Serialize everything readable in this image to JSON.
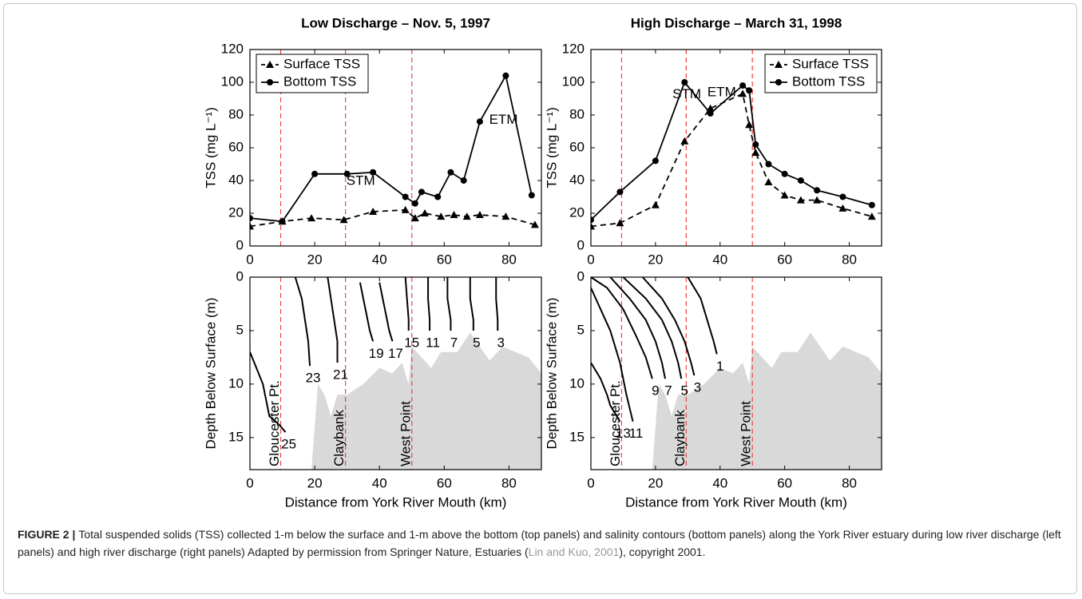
{
  "chart_data": [
    {
      "type": "line",
      "title": "Low Discharge – Nov. 5, 1997",
      "ylabel": "TSS (mg L⁻¹)",
      "xlim": [
        0,
        90
      ],
      "ylim": [
        0,
        120
      ],
      "xticks": [
        0,
        20,
        40,
        60,
        80
      ],
      "yticks": [
        0,
        20,
        40,
        60,
        80,
        100,
        120
      ],
      "legend": "upper left",
      "stations": [
        9.5,
        29.5,
        50
      ],
      "annotations": [
        "STM",
        "ETM"
      ],
      "series": [
        {
          "name": "Surface TSS",
          "color": "#000000",
          "dash": true,
          "marker": "triangle",
          "x": [
            0,
            10,
            19,
            29,
            38,
            48,
            51,
            54,
            59,
            63,
            67,
            71,
            79,
            88
          ],
          "values": [
            12,
            15,
            17,
            16,
            21,
            22,
            17,
            20,
            18,
            19,
            18,
            19,
            18,
            13
          ]
        },
        {
          "name": "Bottom TSS",
          "color": "#000000",
          "dash": false,
          "marker": "circle",
          "x": [
            0,
            10,
            20,
            30,
            38,
            48,
            51,
            53,
            58,
            62,
            66,
            71,
            79,
            87
          ],
          "values": [
            17,
            15,
            44,
            44,
            45,
            30,
            26,
            33,
            30,
            45,
            40,
            76,
            104,
            31
          ]
        }
      ]
    },
    {
      "type": "line",
      "title": "High Discharge – March 31, 1998",
      "ylabel": "TSS (mg L⁻¹)",
      "xlim": [
        0,
        90
      ],
      "ylim": [
        0,
        120
      ],
      "xticks": [
        0,
        20,
        40,
        60,
        80
      ],
      "yticks": [
        0,
        20,
        40,
        60,
        80,
        100,
        120
      ],
      "legend": "upper right",
      "stations": [
        9.5,
        29.5,
        50
      ],
      "annotations": [
        "STM",
        "ETM"
      ],
      "series": [
        {
          "name": "Surface TSS",
          "color": "#000000",
          "dash": true,
          "marker": "triangle",
          "x": [
            0,
            9,
            20,
            29,
            37,
            47,
            49,
            51,
            55,
            60,
            65,
            70,
            78,
            87
          ],
          "values": [
            12,
            14,
            25,
            64,
            84,
            93,
            74,
            57,
            39,
            31,
            28,
            28,
            23,
            18
          ]
        },
        {
          "name": "Bottom TSS",
          "color": "#000000",
          "dash": false,
          "marker": "circle",
          "x": [
            0,
            9,
            20,
            29,
            37,
            47,
            49,
            51,
            55,
            60,
            65,
            70,
            78,
            87
          ],
          "values": [
            16,
            33,
            52,
            100,
            81,
            98,
            95,
            62,
            50,
            44,
            40,
            34,
            30,
            25
          ]
        }
      ]
    },
    {
      "type": "contour",
      "xlabel": "Distance from York River Mouth (km)",
      "ylabel": "Depth Below Surface (m)",
      "xlim": [
        0,
        90
      ],
      "ylim": [
        0,
        18
      ],
      "y_inverted": true,
      "xticks": [
        0,
        20,
        40,
        60,
        80
      ],
      "yticks": [
        0,
        5,
        10,
        15
      ],
      "stations": [
        {
          "x": 9.5,
          "label": "Gloucester Pt."
        },
        {
          "x": 29.5,
          "label": "Claybank"
        },
        {
          "x": 50,
          "label": "West Point"
        }
      ],
      "bathymetry": {
        "x": [
          19,
          21,
          23,
          25,
          27,
          30,
          35,
          40,
          44,
          47,
          49,
          50,
          53,
          56,
          59,
          64,
          68,
          71,
          74,
          78,
          82,
          86,
          90,
          90
        ],
        "y": [
          18,
          10,
          11,
          13,
          11,
          11,
          10,
          8.5,
          9,
          8,
          10,
          6.5,
          7.5,
          8.5,
          7,
          7,
          5.2,
          6.5,
          7.8,
          6.5,
          7,
          7.5,
          9,
          18
        ]
      },
      "contours": [
        {
          "level": 25,
          "x": [
            0,
            2,
            4,
            5,
            6,
            9,
            11
          ],
          "y": [
            7,
            8.5,
            10,
            11.5,
            13,
            13.8,
            14.5
          ]
        },
        {
          "level": 23,
          "x": [
            14,
            16,
            17,
            18,
            18.5
          ],
          "y": [
            0,
            2,
            4,
            6,
            8.3
          ]
        },
        {
          "level": 21,
          "x": [
            24,
            25,
            26,
            27,
            27
          ],
          "y": [
            0,
            2,
            4,
            6,
            8
          ]
        },
        {
          "level": 19,
          "x": [
            34,
            35,
            36,
            37,
            38
          ],
          "y": [
            0.5,
            2,
            3.5,
            5,
            6
          ]
        },
        {
          "level": 17,
          "x": [
            40,
            41,
            42,
            43,
            44
          ],
          "y": [
            0.5,
            2,
            3.5,
            5,
            6
          ]
        },
        {
          "level": 15,
          "x": [
            48,
            48.5,
            49,
            49
          ],
          "y": [
            0,
            2,
            4,
            5
          ]
        },
        {
          "level": 11,
          "x": [
            55,
            55,
            55.5,
            55.5
          ],
          "y": [
            0,
            2,
            4,
            5
          ]
        },
        {
          "level": 7,
          "x": [
            61,
            61,
            62,
            62
          ],
          "y": [
            0,
            2,
            4,
            5
          ]
        },
        {
          "level": 5,
          "x": [
            68,
            68,
            69,
            69
          ],
          "y": [
            0,
            2,
            4,
            5
          ]
        },
        {
          "level": 3,
          "x": [
            76,
            76,
            76.5,
            76.5
          ],
          "y": [
            0,
            2,
            4,
            5
          ]
        }
      ]
    },
    {
      "type": "contour",
      "xlabel": "Distance from York River Mouth (km)",
      "ylabel": "Depth Below Surface (m)",
      "xlim": [
        0,
        90
      ],
      "ylim": [
        0,
        18
      ],
      "y_inverted": true,
      "xticks": [
        0,
        20,
        40,
        60,
        80
      ],
      "yticks": [
        0,
        5,
        10,
        15
      ],
      "stations": [
        {
          "x": 9.5,
          "label": "Gloucester Pt."
        },
        {
          "x": 29.5,
          "label": "Claybank"
        },
        {
          "x": 50,
          "label": "West Point"
        }
      ],
      "bathymetry": {
        "x": [
          19,
          21,
          23,
          25,
          27,
          30,
          35,
          40,
          44,
          47,
          49,
          50,
          53,
          56,
          59,
          64,
          68,
          71,
          74,
          78,
          82,
          86,
          90,
          90
        ],
        "y": [
          18,
          10,
          11,
          13,
          11,
          11,
          10,
          8.5,
          9,
          8,
          10,
          6.5,
          7.5,
          8.5,
          7,
          7,
          5.2,
          6.5,
          7.8,
          6.5,
          7,
          7.5,
          9,
          18
        ]
      },
      "contours": [
        {
          "level": 13,
          "x": [
            0,
            3,
            5,
            6,
            8,
            9
          ],
          "y": [
            8,
            9.5,
            11,
            12,
            13,
            13.5
          ]
        },
        {
          "level": 11,
          "x": [
            0,
            3,
            6,
            9,
            11,
            13
          ],
          "y": [
            1,
            3,
            5,
            8,
            11,
            13.5
          ]
        },
        {
          "level": 9,
          "x": [
            0,
            5,
            10,
            14,
            17,
            19
          ],
          "y": [
            0,
            1,
            3,
            5.5,
            7.5,
            9.5
          ]
        },
        {
          "level": 7,
          "x": [
            6,
            12,
            17,
            20,
            22,
            23
          ],
          "y": [
            0,
            2,
            4,
            6,
            8,
            9.5
          ]
        },
        {
          "level": 5,
          "x": [
            10,
            17,
            22,
            25,
            27,
            28
          ],
          "y": [
            0,
            2,
            4,
            6,
            8,
            9.5
          ]
        },
        {
          "level": 3,
          "x": [
            16,
            22,
            26,
            29,
            31,
            32
          ],
          "y": [
            0,
            2,
            4,
            6,
            8,
            9.2
          ]
        },
        {
          "level": 1,
          "x": [
            30,
            34,
            36,
            38,
            39
          ],
          "y": [
            0,
            2,
            4,
            6,
            7.2
          ]
        }
      ]
    }
  ],
  "caption": {
    "label": "FIGURE 2 |",
    "text": "Total suspended solids (TSS) collected 1-m below the surface and 1-m above the bottom (top panels) and salinity contours (bottom panels) along the York River estuary during low river discharge (left panels) and high river discharge (right panels) Adapted by permission from Springer Nature, Estuaries (",
    "citation": "Lin and Kuo, 2001",
    "text_end": "), copyright 2001."
  }
}
